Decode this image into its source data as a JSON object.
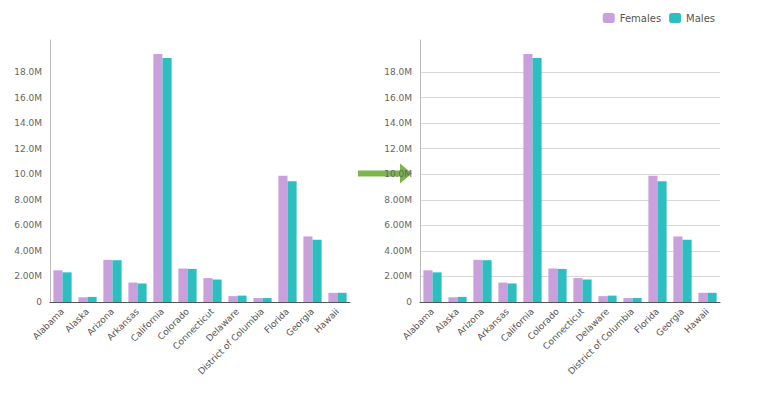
{
  "chart_data": [
    {
      "type": "bar",
      "categories": [
        "Alabama",
        "Alaska",
        "Arizona",
        "Arkansas",
        "California",
        "Colorado",
        "Connecticut",
        "Delaware",
        "District of Columbia",
        "Florida",
        "Georgia",
        "Hawaii"
      ],
      "series": [
        {
          "color": "#c9a0dc",
          "values": [
            2480000,
            370000,
            3300000,
            1520000,
            19400000,
            2620000,
            1870000,
            460000,
            310000,
            9870000,
            5130000,
            720000
          ]
        },
        {
          "color": "#2dbfbf",
          "values": [
            2320000,
            400000,
            3270000,
            1450000,
            19100000,
            2590000,
            1760000,
            500000,
            310000,
            9440000,
            4870000,
            720000
          ]
        }
      ],
      "ylim": [
        0,
        20500000
      ],
      "yticks": [
        0,
        {
          "value": 2000000,
          "label": "2.00M"
        },
        {
          "value": 4000000,
          "label": "4.00M"
        },
        {
          "value": 6000000,
          "label": "6.00M"
        },
        {
          "value": 8000000,
          "label": "8.00M"
        },
        {
          "value": 10000000,
          "label": "10.0M"
        },
        {
          "value": 12000000,
          "label": "12.0M"
        },
        {
          "value": 14000000,
          "label": "14.0M"
        },
        {
          "value": 16000000,
          "label": "16.0M"
        },
        {
          "value": 18000000,
          "label": "18.0M"
        }
      ],
      "grid": false
    },
    {
      "type": "bar",
      "categories": [
        "Alabama",
        "Alaska",
        "Arizona",
        "Arkansas",
        "California",
        "Colorado",
        "Connecticut",
        "Delaware",
        "District of Columbia",
        "Florida",
        "Georgia",
        "Hawaii"
      ],
      "series": [
        {
          "name": "Females",
          "color": "#c9a0dc",
          "values": [
            2480000,
            370000,
            3300000,
            1520000,
            19400000,
            2620000,
            1870000,
            460000,
            310000,
            9870000,
            5130000,
            720000
          ]
        },
        {
          "name": "Males",
          "color": "#2dbfbf",
          "values": [
            2320000,
            400000,
            3270000,
            1450000,
            19100000,
            2590000,
            1760000,
            500000,
            310000,
            9440000,
            4870000,
            720000
          ]
        }
      ],
      "ylim": [
        0,
        20500000
      ],
      "yticks": [
        0,
        {
          "value": 2000000,
          "label": "2.00M"
        },
        {
          "value": 4000000,
          "label": "4.00M"
        },
        {
          "value": 6000000,
          "label": "6.00M"
        },
        {
          "value": 8000000,
          "label": "8.00M"
        },
        {
          "value": 10000000,
          "label": "10.0M"
        },
        {
          "value": 12000000,
          "label": "12.0M"
        },
        {
          "value": 14000000,
          "label": "14.0M"
        },
        {
          "value": 16000000,
          "label": "16.0M"
        },
        {
          "value": 18000000,
          "label": "18.0M"
        }
      ],
      "grid": true,
      "legend": "upper right"
    }
  ]
}
